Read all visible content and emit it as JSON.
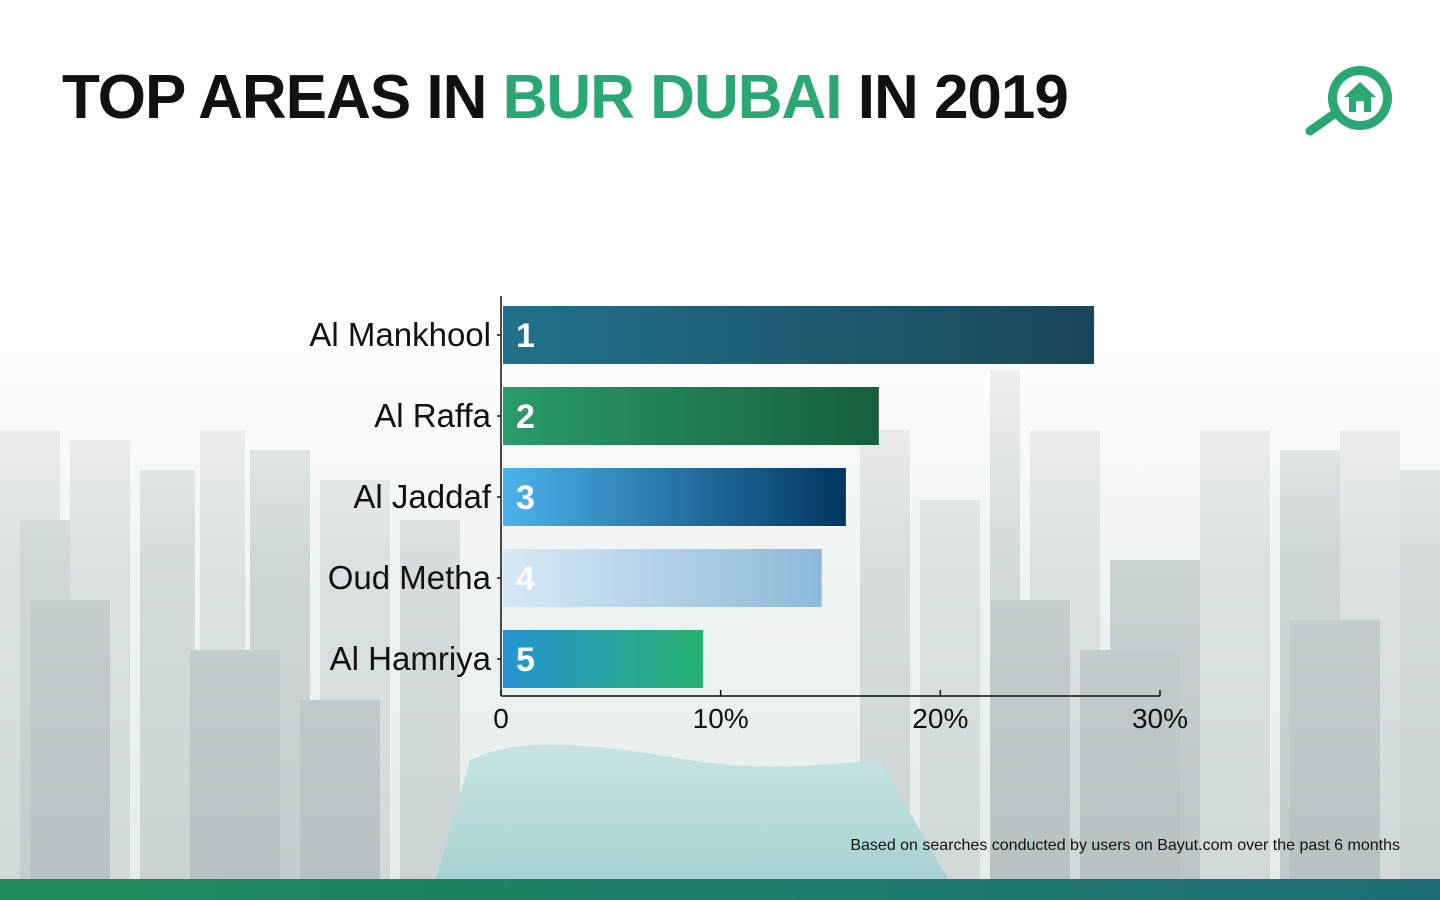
{
  "header": {
    "title_pre": "TOP AREAS IN ",
    "title_highlight": "BUR DUBAI",
    "title_post": " IN 2019",
    "highlight_color": "#2aa774"
  },
  "logo": {
    "icon": "magnifier-house-icon",
    "color": "#2aa774"
  },
  "chart_data": {
    "type": "bar",
    "orientation": "horizontal",
    "categories": [
      "Al Mankhool",
      "Al Raffa",
      "Al Jaddaf",
      "Oud Metha",
      "Al Hamriya"
    ],
    "ranks": [
      "1",
      "2",
      "3",
      "4",
      "5"
    ],
    "values": [
      27,
      17.2,
      15.7,
      14.6,
      9.2
    ],
    "unit": "%",
    "xlim": [
      0,
      30
    ],
    "xticks": [
      0,
      10,
      20,
      30
    ],
    "xtick_labels": [
      "0",
      "10%",
      "20%",
      "30%"
    ],
    "grid": false,
    "bar_colors": [
      [
        "#21718b",
        "#1a4657"
      ],
      [
        "#2a9b6b",
        "#15603a"
      ],
      [
        "#4cb3ec",
        "#013660"
      ],
      [
        "#d6e9f6",
        "#8dbad9"
      ],
      [
        "#2694d2",
        "#27b26f"
      ]
    ]
  },
  "footnote": "Based on searches conducted by users on Bayut.com over the past 6 months"
}
